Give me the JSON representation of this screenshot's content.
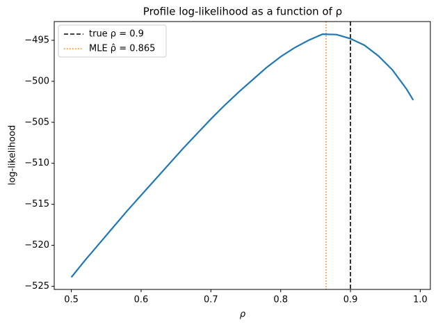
{
  "chart_data": {
    "type": "line",
    "title": "Profile log-likelihood as a function of ρ",
    "x_label": "ρ",
    "y_label": "log-likelihood",
    "x": [
      0.5,
      0.52,
      0.54,
      0.56,
      0.58,
      0.6,
      0.62,
      0.64,
      0.66,
      0.68,
      0.7,
      0.72,
      0.74,
      0.76,
      0.78,
      0.8,
      0.82,
      0.84,
      0.86,
      0.88,
      0.9,
      0.92,
      0.94,
      0.96,
      0.98,
      0.99
    ],
    "series": [
      {
        "color": "#1f77b4",
        "values": [
          -523.9,
          -521.8,
          -519.8,
          -517.8,
          -515.8,
          -513.9,
          -512.0,
          -510.1,
          -508.2,
          -506.4,
          -504.6,
          -502.9,
          -501.3,
          -499.8,
          -498.3,
          -497.0,
          -495.9,
          -495.0,
          -494.25,
          -494.3,
          -494.8,
          -495.6,
          -496.9,
          -498.6,
          -500.9,
          -502.3
        ]
      }
    ],
    "vlines": [
      {
        "name": "true ρ = 0.9",
        "x": 0.9,
        "color": "#000000",
        "style": "dashed"
      },
      {
        "name": "MLE  ρ̂ = 0.865",
        "x": 0.865,
        "color": "#ff7f0e",
        "style": "dotted"
      }
    ],
    "legend": "upper left",
    "xlim": [
      0.4755,
      1.0145
    ],
    "xticks": [
      0.5,
      0.6,
      0.7,
      0.8,
      0.9,
      {
        "value": 1,
        "label": "1.0"
      }
    ],
    "ylim": [
      -525.385,
      -492.715
    ],
    "yticks": [
      {
        "value": -495,
        "label": "−495"
      },
      {
        "value": -500,
        "label": "−500"
      },
      {
        "value": -505,
        "label": "−505"
      },
      {
        "value": -510,
        "label": "−510"
      },
      {
        "value": -515,
        "label": "−515"
      },
      {
        "value": -520,
        "label": "−520"
      },
      {
        "value": -525,
        "label": "−525"
      }
    ]
  }
}
